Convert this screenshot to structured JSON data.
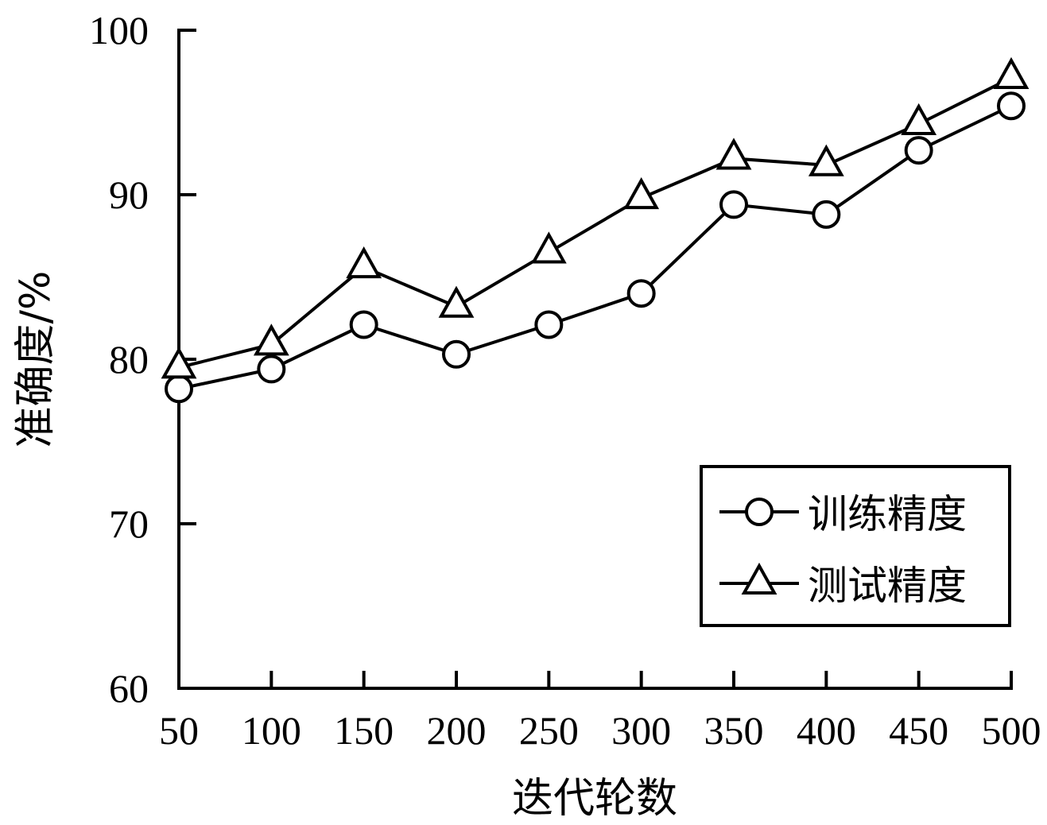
{
  "chart_data": {
    "type": "line",
    "xlabel": "迭代轮数",
    "ylabel": "准确度/%",
    "x": [
      50,
      100,
      150,
      200,
      250,
      300,
      350,
      400,
      450,
      500
    ],
    "x_tick_labels": [
      "50",
      "100",
      "150",
      "200",
      "250",
      "300",
      "350",
      "400",
      "450",
      "500"
    ],
    "ylim": [
      60,
      100
    ],
    "y_ticks": [
      60,
      70,
      80,
      90,
      100
    ],
    "y_tick_labels": [
      "60",
      "70",
      "80",
      "90",
      "100"
    ],
    "grid": false,
    "legend_position": "bottom-right",
    "series": [
      {
        "name": "训练精度",
        "marker": "circle",
        "values": [
          78.2,
          79.4,
          82.1,
          80.3,
          82.1,
          84.0,
          89.4,
          88.8,
          92.7,
          95.4
        ]
      },
      {
        "name": "测试精度",
        "marker": "triangle",
        "values": [
          79.5,
          80.9,
          85.6,
          83.2,
          86.5,
          89.8,
          92.2,
          91.8,
          94.3,
          97.1
        ]
      }
    ],
    "line_color": "#000000"
  }
}
